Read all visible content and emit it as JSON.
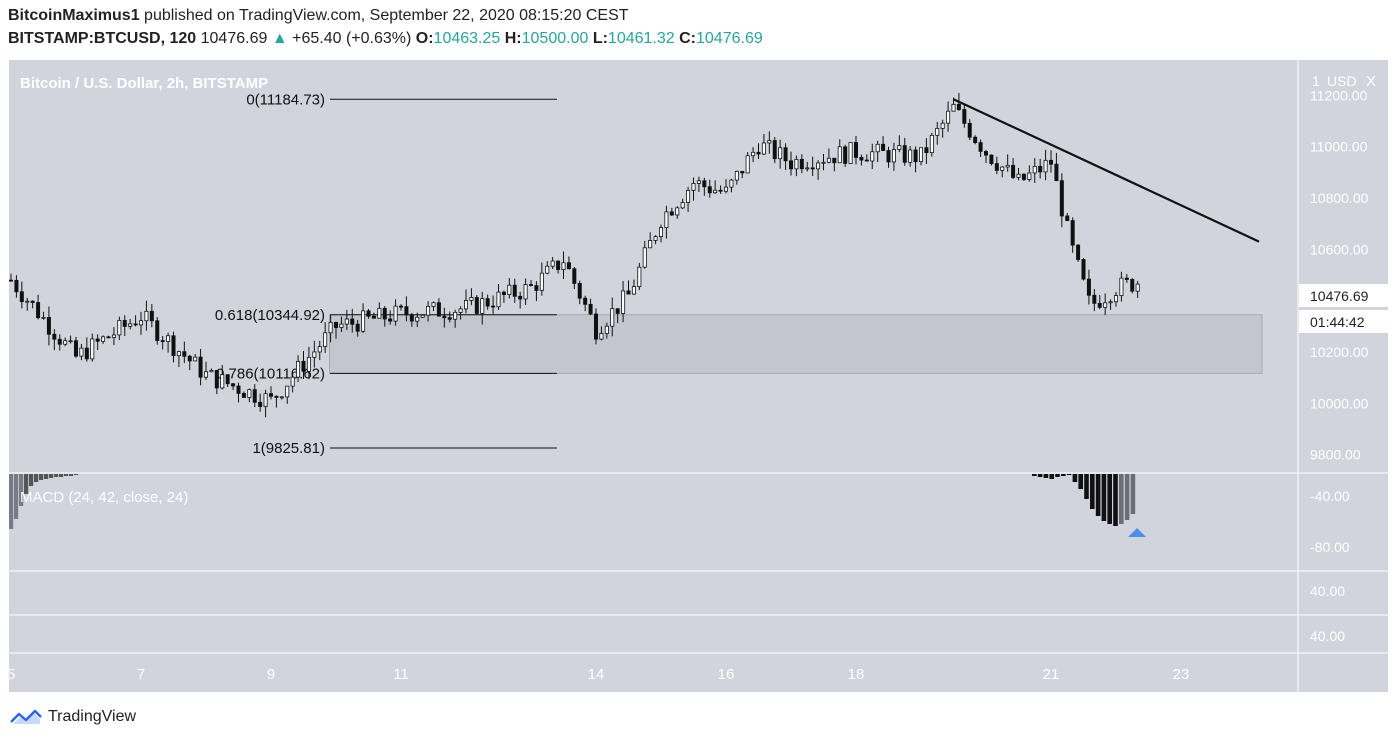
{
  "header": {
    "author": "BitcoinMaximus1",
    "published": "published on TradingView.com, September 22, 2020 08:15:20 CEST",
    "symbol": "BITSTAMP:BTCUSD, 120",
    "last": "10476.69",
    "change": "+65.40 (+0.63%)",
    "o_label": "O:",
    "o": "10463.25",
    "h_label": "H:",
    "h": "10500.00",
    "l_label": "L:",
    "l": "10461.32",
    "c_label": "C:",
    "c": "10476.69"
  },
  "footer": {
    "brand": "TradingView"
  },
  "chart_data": {
    "type": "candlestick",
    "title": "Bitcoin / U.S. Dollar, 2h, BITSTAMP",
    "currency": "USD",
    "price_axis_ticks": [
      11200,
      11000,
      10800,
      10600,
      10400,
      10200,
      10000,
      9800
    ],
    "price_axis_labels": [
      "11200.00",
      "11000.00",
      "10800.00",
      "10600.00",
      "10400.00",
      "10200.00",
      "10000.00",
      "9800.00"
    ],
    "price_axis_top_label": "1",
    "ylim": [
      9740,
      11330
    ],
    "last_price_label": "10476.69",
    "countdown_label": "01:44:42",
    "x_axis_labels": [
      "5",
      "7",
      "9",
      "11",
      "14",
      "16",
      "18",
      "21",
      "23"
    ],
    "price_path": [
      [
        "5",
        10480
      ],
      [
        "6",
        10180
      ],
      [
        "7",
        10340
      ],
      [
        "8",
        10110
      ],
      [
        "9",
        10010
      ],
      [
        "10",
        10300
      ],
      [
        "11",
        10350
      ],
      [
        "12",
        10370
      ],
      [
        "13",
        10450
      ],
      [
        "13.5",
        10560
      ],
      [
        "14",
        10290
      ],
      [
        "14.5",
        10420
      ],
      [
        "15",
        10720
      ],
      [
        "15.5",
        10860
      ],
      [
        "16",
        10820
      ],
      [
        "16.5",
        11010
      ],
      [
        "17",
        10940
      ],
      [
        "18",
        10980
      ],
      [
        "19",
        10960
      ],
      [
        "19.5",
        11150
      ],
      [
        "20",
        10980
      ],
      [
        "20.5",
        10860
      ],
      [
        "21",
        10940
      ],
      [
        "21.3",
        10620
      ],
      [
        "21.6",
        10380
      ],
      [
        "22",
        10450
      ],
      [
        "22.4",
        10477
      ]
    ],
    "fibonacci": [
      {
        "label": "0(11184.73)",
        "price": 11184.73
      },
      {
        "label": "0.618(10344.92)",
        "price": 10344.92
      },
      {
        "label": "0.786(10116.62)",
        "price": 10116.62
      },
      {
        "label": "1(9825.81)",
        "price": 9825.81
      }
    ],
    "support_zone": [
      10116.62,
      10344.92
    ],
    "trendline": {
      "from": [
        "19.5",
        11185
      ],
      "to": [
        "24.2",
        10630
      ]
    },
    "macd": {
      "label": "MACD (24, 42, close, 24)",
      "axis_labels": [
        "-40.00",
        "-80.00"
      ],
      "histogram_end_values": [
        -2,
        -3,
        -4,
        -5,
        -3,
        -2,
        -1,
        -8,
        -15,
        -25,
        -35,
        -42,
        -47,
        -50,
        -52,
        -50,
        -46,
        -40
      ]
    },
    "pane3_axis_label": "40.00",
    "pane4_axis_label": "40.00"
  }
}
